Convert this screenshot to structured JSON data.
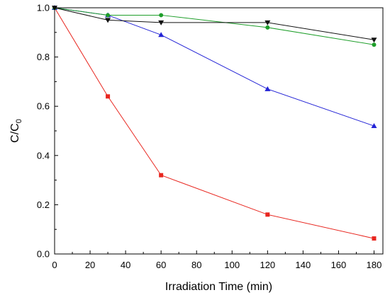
{
  "chart_data": {
    "type": "line",
    "title": "",
    "xlabel": "Irradiation Time (min)",
    "ylabel_main": "C/C",
    "ylabel_sub": "0",
    "xlim": [
      0,
      185
    ],
    "ylim": [
      0,
      1.0
    ],
    "xticks": [
      0,
      20,
      40,
      60,
      80,
      100,
      120,
      140,
      160,
      180
    ],
    "yticks": [
      0.0,
      0.2,
      0.4,
      0.6,
      0.8,
      1.0
    ],
    "ytick_labels": [
      "0.0",
      "0.2",
      "0.4",
      "0.6",
      "0.8",
      "1.0"
    ],
    "grid": false,
    "legend": "none",
    "series": [
      {
        "color": "#e8261f",
        "marker": "square",
        "x": [
          0,
          30,
          60,
          120,
          180
        ],
        "y": [
          1.0,
          0.64,
          0.32,
          0.16,
          0.063
        ]
      },
      {
        "color": "#2323d6",
        "marker": "triangle-up",
        "x": [
          0,
          30,
          60,
          120,
          180
        ],
        "y": [
          1.0,
          0.97,
          0.89,
          0.67,
          0.52
        ]
      },
      {
        "color": "#1e9e2a",
        "marker": "circle",
        "x": [
          0,
          30,
          60,
          120,
          180
        ],
        "y": [
          1.0,
          0.97,
          0.97,
          0.92,
          0.85
        ]
      },
      {
        "color": "#111111",
        "marker": "triangle-down",
        "x": [
          0,
          30,
          60,
          120,
          180
        ],
        "y": [
          1.0,
          0.95,
          0.94,
          0.94,
          0.87
        ]
      }
    ]
  }
}
